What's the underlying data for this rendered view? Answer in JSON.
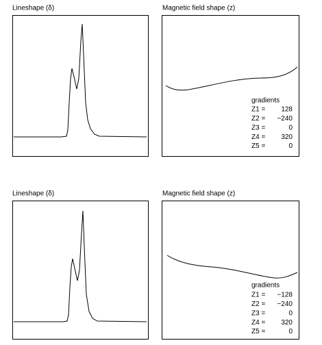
{
  "panels": [
    {
      "lineshape_title": "Lineshape (δ)",
      "field_title": "Magnetic field shape (z)",
      "gradients_label": "gradients",
      "gradients": [
        {
          "name": "Z1 =",
          "value": "128"
        },
        {
          "name": "Z2 =",
          "value": "−240"
        },
        {
          "name": "Z3 =",
          "value": "0"
        },
        {
          "name": "Z4 =",
          "value": "320"
        },
        {
          "name": "Z5 =",
          "value": "0"
        }
      ]
    },
    {
      "lineshape_title": "Lineshape (δ)",
      "field_title": "Magnetic field shape (z)",
      "gradients_label": "gradients",
      "gradients": [
        {
          "name": "Z1 =",
          "value": "−128"
        },
        {
          "name": "Z2 =",
          "value": "−240"
        },
        {
          "name": "Z3 =",
          "value": "0"
        },
        {
          "name": "Z4 =",
          "value": "320"
        },
        {
          "name": "Z5 =",
          "value": "0"
        }
      ]
    }
  ]
}
